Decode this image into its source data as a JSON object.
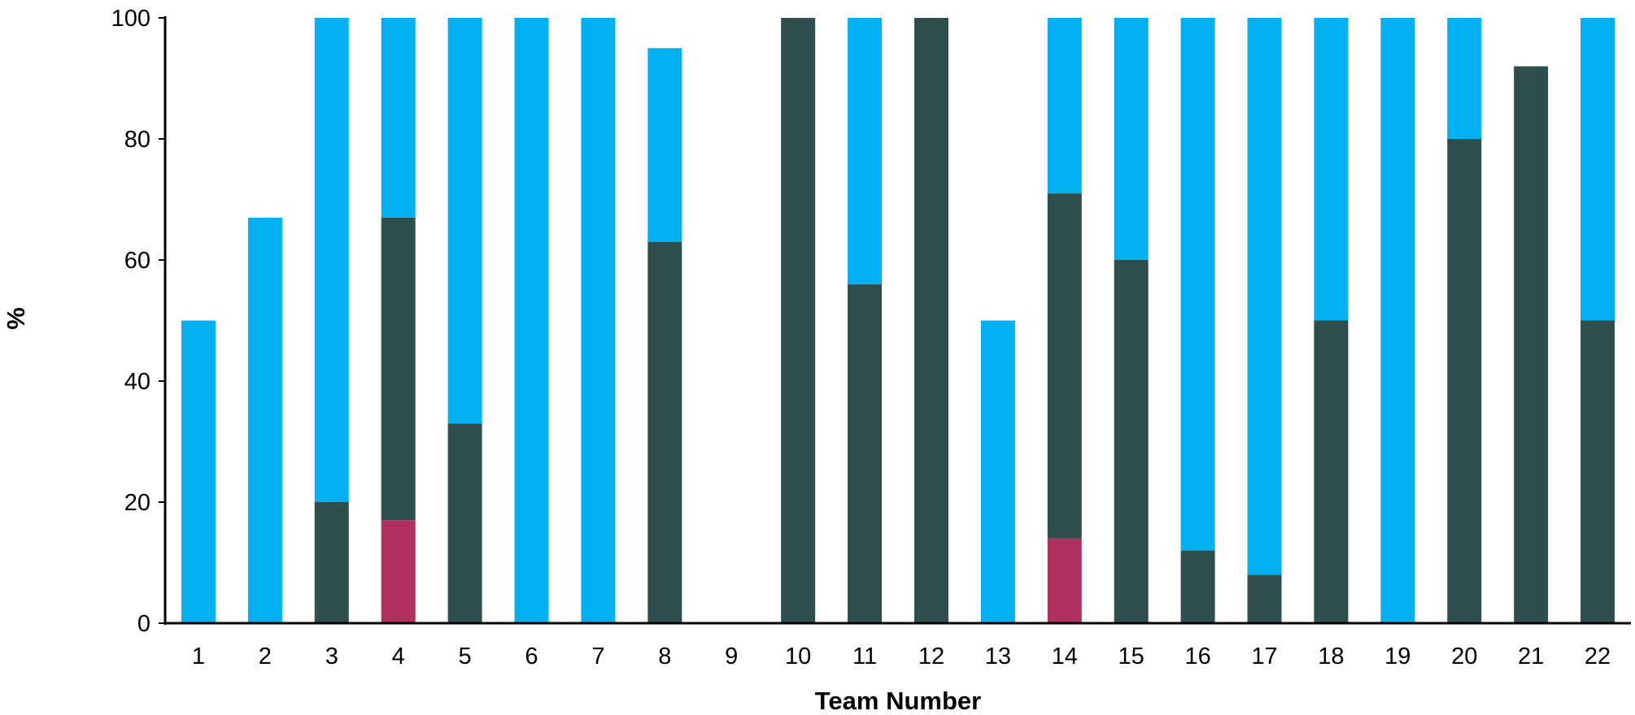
{
  "chart_data": {
    "type": "bar",
    "stacked": true,
    "title": "",
    "xlabel": "Team Number",
    "ylabel": "%",
    "ylim": [
      0,
      100
    ],
    "yticks": [
      0,
      20,
      40,
      60,
      80,
      100
    ],
    "grid": false,
    "legend": "none",
    "categories": [
      "1",
      "2",
      "3",
      "4",
      "5",
      "6",
      "7",
      "8",
      "9",
      "10",
      "11",
      "12",
      "13",
      "14",
      "15",
      "16",
      "17",
      "18",
      "19",
      "20",
      "21",
      "22"
    ],
    "series": [
      {
        "color": "#B03060",
        "values": [
          0,
          0,
          0,
          17,
          0,
          0,
          0,
          0,
          0,
          0,
          0,
          0,
          0,
          14,
          0,
          0,
          0,
          0,
          0,
          0,
          0,
          0
        ]
      },
      {
        "color": "#2F4F4F",
        "values": [
          0,
          0,
          20,
          50,
          33,
          0,
          0,
          63,
          0,
          100,
          56,
          100,
          0,
          57,
          60,
          12,
          8,
          50,
          0,
          80,
          92,
          50
        ]
      },
      {
        "color": "#00B0F0",
        "values": [
          50,
          67,
          80,
          33,
          67,
          100,
          100,
          32,
          0,
          0,
          44,
          0,
          50,
          29,
          40,
          88,
          92,
          50,
          100,
          20,
          0,
          50
        ]
      }
    ]
  }
}
